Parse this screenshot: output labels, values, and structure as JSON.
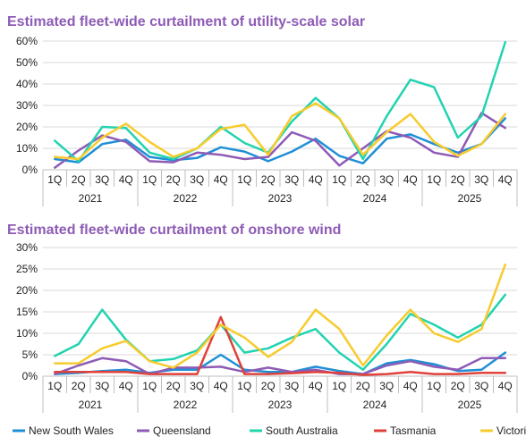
{
  "legend": [
    {
      "name": "New South Wales",
      "color": "#1f8fd6"
    },
    {
      "name": "Queensland",
      "color": "#8e5bb5"
    },
    {
      "name": "South Australia",
      "color": "#22d3b0"
    },
    {
      "name": "Tasmania",
      "color": "#e0413a"
    },
    {
      "name": "Victoria",
      "color": "#f7cb2d"
    }
  ],
  "chart_data": [
    {
      "type": "line",
      "title": "Estimated fleet-wide curtailment of utility-scale solar",
      "quarters": [
        "1Q",
        "2Q",
        "3Q",
        "4Q",
        "1Q",
        "2Q",
        "3Q",
        "4Q",
        "1Q",
        "2Q",
        "3Q",
        "4Q",
        "1Q",
        "2Q",
        "3Q",
        "4Q",
        "1Q",
        "2Q",
        "3Q",
        "4Q"
      ],
      "years": [
        "2021",
        "2022",
        "2023",
        "2024",
        "2025"
      ],
      "ylim": [
        0,
        60
      ],
      "yticks": [
        "0%",
        "10%",
        "20%",
        "30%",
        "40%",
        "50%",
        "60%"
      ],
      "grid": true,
      "series": [
        {
          "name": "New South Wales",
          "color": "#1f8fd6",
          "values": [
            5,
            3.5,
            12,
            14,
            6,
            4.5,
            5.5,
            10.5,
            8.5,
            4,
            8.5,
            14.5,
            6.5,
            3,
            14.5,
            16.5,
            12,
            8,
            12,
            24
          ]
        },
        {
          "name": "Queensland",
          "color": "#8e5bb5",
          "values": [
            1,
            9,
            16,
            13,
            4,
            3.5,
            8,
            7,
            5,
            6,
            17.5,
            13.5,
            2,
            10,
            18,
            15,
            8,
            6,
            26.5,
            19.5
          ]
        },
        {
          "name": "South Australia",
          "color": "#22d3b0",
          "values": [
            13.5,
            4,
            20,
            19.5,
            8,
            5,
            10,
            20,
            12.5,
            8,
            22.5,
            33.5,
            24,
            5,
            25,
            42,
            38.5,
            15,
            25,
            59.5
          ]
        },
        {
          "name": "Victoria",
          "color": "#f7cb2d",
          "values": [
            6,
            5,
            15,
            21.5,
            13,
            6,
            10,
            19,
            21,
            7,
            25,
            31,
            24,
            7,
            17.5,
            26,
            13,
            6.5,
            12,
            26
          ]
        }
      ]
    },
    {
      "type": "line",
      "title": "Estimated fleet-wide curtailment of onshore wind",
      "quarters": [
        "1Q",
        "2Q",
        "3Q",
        "4Q",
        "1Q",
        "2Q",
        "3Q",
        "4Q",
        "1Q",
        "2Q",
        "3Q",
        "4Q",
        "1Q",
        "2Q",
        "3Q",
        "4Q",
        "1Q",
        "2Q",
        "3Q",
        "4Q"
      ],
      "years": [
        "2021",
        "2022",
        "2023",
        "2024",
        "2025"
      ],
      "ylim": [
        0,
        30
      ],
      "yticks": [
        "0%",
        "5%",
        "10%",
        "15%",
        "20%",
        "25%",
        "30%"
      ],
      "grid": true,
      "series": [
        {
          "name": "New South Wales",
          "color": "#1f8fd6",
          "values": [
            0.5,
            0.8,
            1.2,
            1.5,
            0.8,
            1.5,
            1.5,
            5,
            1.5,
            1,
            1,
            2.2,
            1.2,
            0.5,
            3,
            3.8,
            2.8,
            1.2,
            1.5,
            5.5
          ]
        },
        {
          "name": "Queensland",
          "color": "#8e5bb5",
          "values": [
            0.5,
            2.5,
            4.2,
            3.5,
            0.5,
            2,
            2,
            2.2,
            1,
            2,
            1,
            1.5,
            0.5,
            0.5,
            2.5,
            3.5,
            2.2,
            1.5,
            4.2,
            4.2
          ]
        },
        {
          "name": "South Australia",
          "color": "#22d3b0",
          "values": [
            4.7,
            7.5,
            15.5,
            8.5,
            3.5,
            4,
            6,
            12,
            5.5,
            6.5,
            9,
            11,
            5.5,
            1.5,
            7.5,
            14.5,
            12,
            9,
            12,
            19
          ]
        },
        {
          "name": "Tasmania",
          "color": "#e0413a",
          "values": [
            1,
            1,
            1,
            1,
            0.5,
            0.5,
            0.5,
            13.8,
            0.5,
            0.5,
            0.7,
            1,
            0.8,
            0.3,
            0.5,
            1,
            0.5,
            0.5,
            0.8,
            0.8
          ]
        },
        {
          "name": "Victoria",
          "color": "#f7cb2d",
          "values": [
            3,
            3,
            6.5,
            8.2,
            3.5,
            2,
            5.5,
            12,
            9,
            4.5,
            8,
            15.5,
            11,
            2.5,
            9.5,
            15.5,
            10,
            8,
            11,
            26
          ]
        }
      ]
    }
  ]
}
